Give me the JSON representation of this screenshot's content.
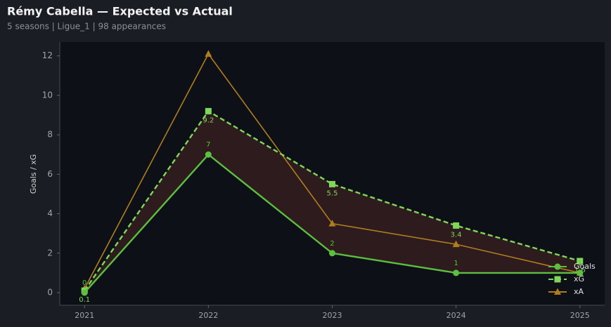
{
  "chart_data": {
    "type": "line",
    "title": "Rémy Cabella — Expected vs Actual",
    "subtitle": "5 seasons | Ligue_1 | 98 appearances",
    "y_label": "Goals / xG",
    "x": [
      2021,
      2022,
      2023,
      2024,
      2025
    ],
    "xlim": [
      2020.8,
      2025.2
    ],
    "xticks": [
      2021,
      2022,
      2023,
      2024,
      2025
    ],
    "ylim": [
      -0.64,
      12.7
    ],
    "yticks": [
      0,
      2,
      4,
      6,
      8,
      10,
      12
    ],
    "legend": "lower right",
    "gap_color": "#2d1b1e",
    "series": [
      {
        "name": "Goals",
        "color": "#5cbf3f",
        "marker": "circle",
        "dash": false,
        "labels": "above",
        "values": [
          0,
          7,
          2,
          1,
          1
        ]
      },
      {
        "name": "xG",
        "color": "#7fd65a",
        "marker": "square",
        "dash": true,
        "labels": "below",
        "values": [
          0.1,
          9.2,
          5.5,
          3.4,
          1.6
        ]
      },
      {
        "name": "xA",
        "color": "#b07d1e",
        "marker": "triangle",
        "dash": false,
        "values": [
          0.2,
          12.1,
          3.5,
          2.45,
          1.0
        ]
      }
    ]
  }
}
